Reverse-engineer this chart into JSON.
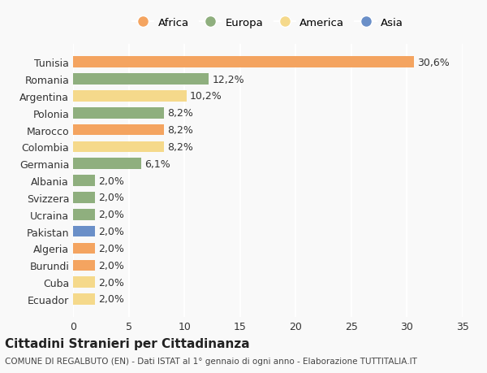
{
  "countries": [
    "Tunisia",
    "Romania",
    "Argentina",
    "Polonia",
    "Marocco",
    "Colombia",
    "Germania",
    "Albania",
    "Svizzera",
    "Ucraina",
    "Pakistan",
    "Algeria",
    "Burundi",
    "Cuba",
    "Ecuador"
  ],
  "values": [
    30.6,
    12.2,
    10.2,
    8.2,
    8.2,
    8.2,
    6.1,
    2.0,
    2.0,
    2.0,
    2.0,
    2.0,
    2.0,
    2.0,
    2.0
  ],
  "labels": [
    "30,6%",
    "12,2%",
    "10,2%",
    "8,2%",
    "8,2%",
    "8,2%",
    "6,1%",
    "2,0%",
    "2,0%",
    "2,0%",
    "2,0%",
    "2,0%",
    "2,0%",
    "2,0%",
    "2,0%"
  ],
  "colors": [
    "#F4A460",
    "#8FAF7E",
    "#F5D98B",
    "#8FAF7E",
    "#F4A460",
    "#F5D98B",
    "#8FAF7E",
    "#8FAF7E",
    "#8FAF7E",
    "#8FAF7E",
    "#6A8FC8",
    "#F4A460",
    "#F4A460",
    "#F5D98B",
    "#F5D98B"
  ],
  "legend": [
    {
      "label": "Africa",
      "color": "#F4A460"
    },
    {
      "label": "Europa",
      "color": "#8FAF7E"
    },
    {
      "label": "America",
      "color": "#F5D98B"
    },
    {
      "label": "Asia",
      "color": "#6A8FC8"
    }
  ],
  "xlim": [
    0,
    35
  ],
  "xticks": [
    0,
    5,
    10,
    15,
    20,
    25,
    30,
    35
  ],
  "title": "Cittadini Stranieri per Cittadinanza",
  "subtitle": "COMUNE DI REGALBUTO (EN) - Dati ISTAT al 1° gennaio di ogni anno - Elaborazione TUTTITALIA.IT",
  "background_color": "#f9f9f9",
  "grid_color": "#ffffff",
  "bar_height": 0.65,
  "label_fontsize": 9,
  "tick_fontsize": 9
}
